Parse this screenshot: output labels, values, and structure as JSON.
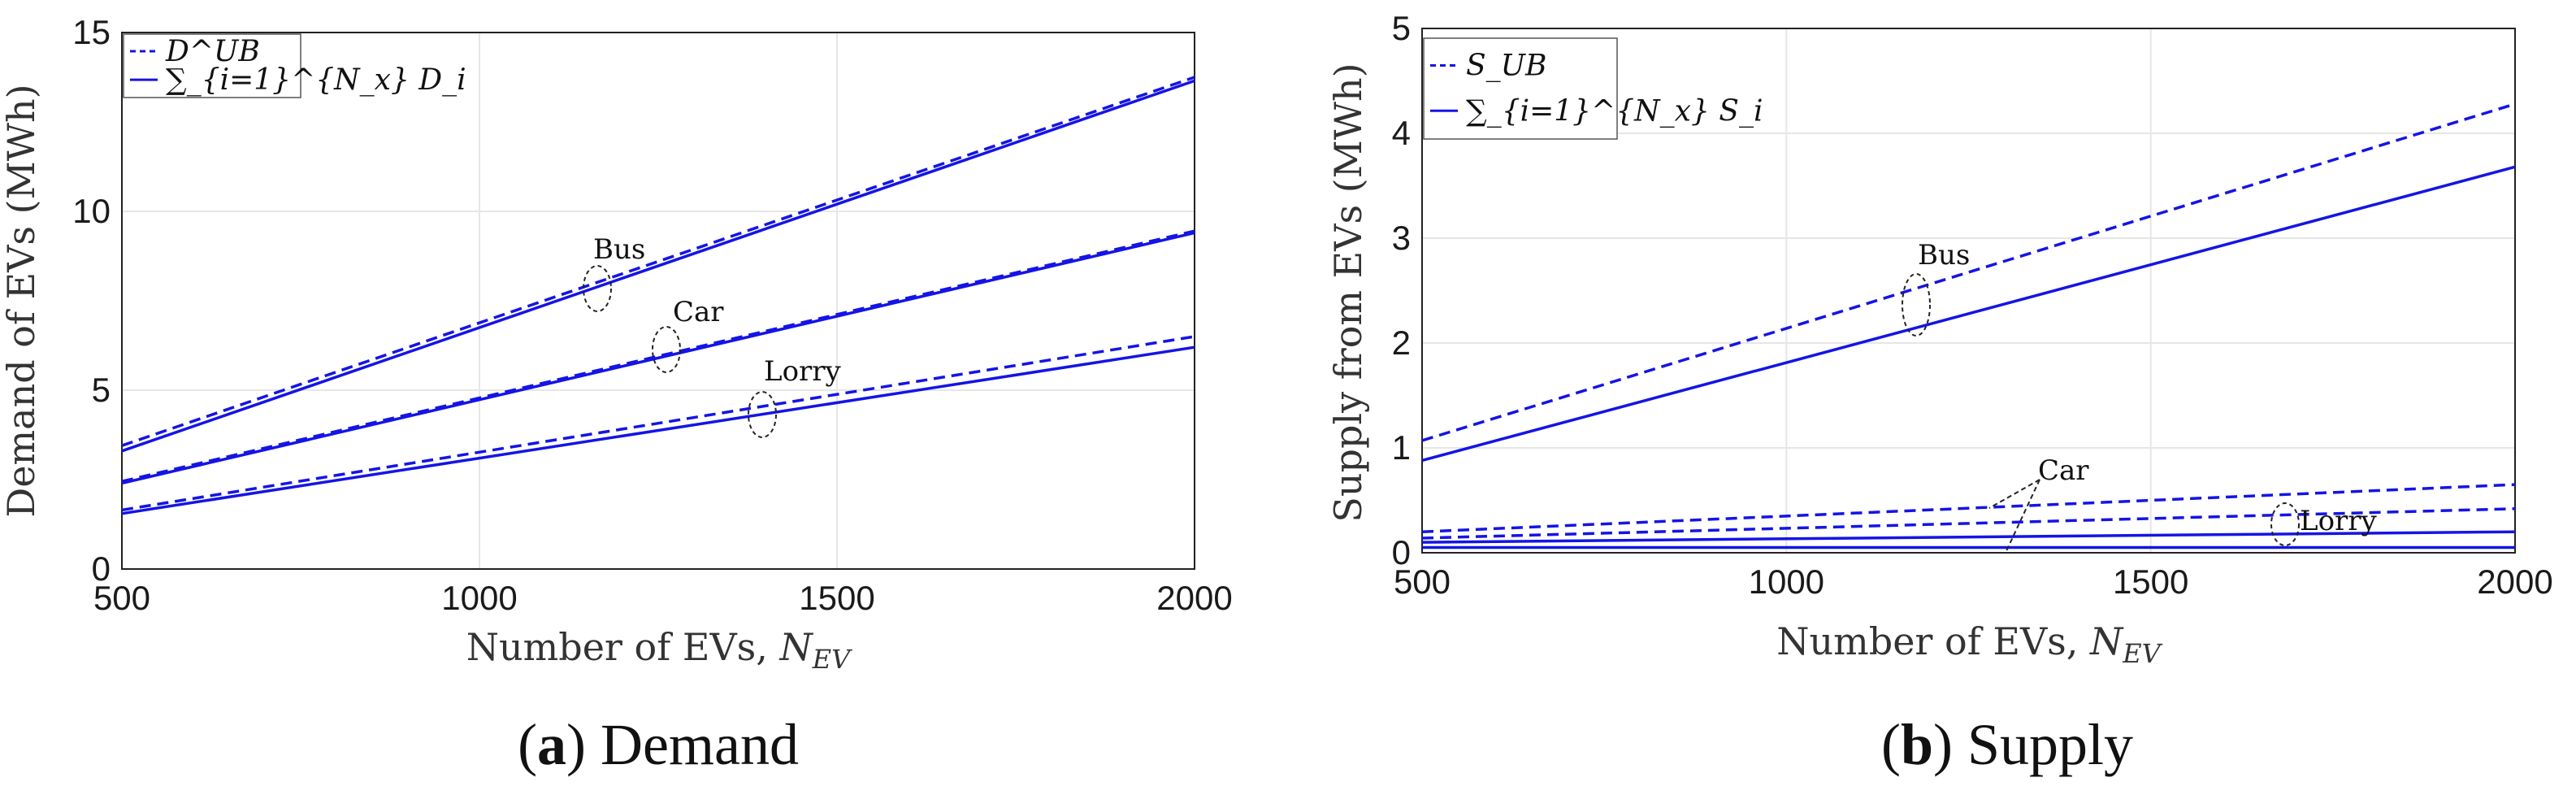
{
  "chart_data": [
    {
      "panel": "a",
      "type": "line",
      "caption_letter": "a",
      "caption_text": "Demand",
      "ylabel": "Demand of EVs (MWh)",
      "xlabel": "Number of EVs, N_EV",
      "xlim": [
        500,
        2000
      ],
      "ylim": [
        0,
        15
      ],
      "xticks": [
        "500",
        "1000",
        "1500",
        "2000"
      ],
      "yticks": [
        "0",
        "5",
        "10",
        "15"
      ],
      "grid": true,
      "legend_placement": "top-left",
      "legend": [
        {
          "label": "D^UB",
          "style": "dashed"
        },
        {
          "label": "∑_{i=1}^{N_x} D_i",
          "style": "solid"
        }
      ],
      "series": [
        {
          "group": "Bus",
          "style": "dashed",
          "x": [
            500,
            2000
          ],
          "y": [
            3.45,
            13.75
          ]
        },
        {
          "group": "Bus",
          "style": "solid",
          "x": [
            500,
            2000
          ],
          "y": [
            3.3,
            13.65
          ]
        },
        {
          "group": "Car",
          "style": "dashed",
          "x": [
            500,
            2000
          ],
          "y": [
            2.45,
            9.45
          ]
        },
        {
          "group": "Car",
          "style": "solid",
          "x": [
            500,
            2000
          ],
          "y": [
            2.4,
            9.4
          ]
        },
        {
          "group": "Lorry",
          "style": "dashed",
          "x": [
            500,
            2000
          ],
          "y": [
            1.65,
            6.5
          ]
        },
        {
          "group": "Lorry",
          "style": "solid",
          "x": [
            500,
            2000
          ],
          "y": [
            1.55,
            6.2
          ]
        }
      ],
      "annotations": [
        {
          "text": "Bus",
          "x": 1170,
          "y": 7.8
        },
        {
          "text": "Car",
          "x": 1270,
          "y": 6.0
        },
        {
          "text": "Lorry",
          "x": 1405,
          "y": 4.3
        }
      ],
      "color": "#1414e6"
    },
    {
      "panel": "b",
      "type": "line",
      "caption_letter": "b",
      "caption_text": "Supply",
      "ylabel": "Supply from EVs (MWh)",
      "xlabel": "Number of EVs, N_EV",
      "xlim": [
        500,
        2000
      ],
      "ylim": [
        0,
        5
      ],
      "xticks": [
        "500",
        "1000",
        "1500",
        "2000"
      ],
      "yticks": [
        "0",
        "1",
        "2",
        "3",
        "4",
        "5"
      ],
      "grid": true,
      "legend_placement": "top-left",
      "legend": [
        {
          "label": "S_UB",
          "style": "dashed"
        },
        {
          "label": "∑_{i=1}^{N_x} S_i",
          "style": "solid"
        }
      ],
      "series": [
        {
          "group": "Bus",
          "style": "dashed",
          "x": [
            500,
            2000
          ],
          "y": [
            1.07,
            4.28
          ]
        },
        {
          "group": "Bus",
          "style": "solid",
          "x": [
            500,
            2000
          ],
          "y": [
            0.88,
            3.68
          ]
        },
        {
          "group": "Car",
          "style": "dashed",
          "x": [
            500,
            2000
          ],
          "y": [
            0.2,
            0.65
          ]
        },
        {
          "group": "Car",
          "style": "solid",
          "x": [
            500,
            2000
          ],
          "y": [
            0.05,
            0.05
          ]
        },
        {
          "group": "Lorry",
          "style": "dashed",
          "x": [
            500,
            2000
          ],
          "y": [
            0.14,
            0.42
          ]
        },
        {
          "group": "Lorry",
          "style": "solid",
          "x": [
            500,
            2000
          ],
          "y": [
            0.1,
            0.2
          ]
        }
      ],
      "annotations": [
        {
          "text": "Bus",
          "x": 1165,
          "y": 2.35
        },
        {
          "text": "Car",
          "x": 1290,
          "y": 0.28
        },
        {
          "text": "Lorry",
          "x": 1690,
          "y": 0.28
        }
      ],
      "color": "#1414e6"
    }
  ]
}
